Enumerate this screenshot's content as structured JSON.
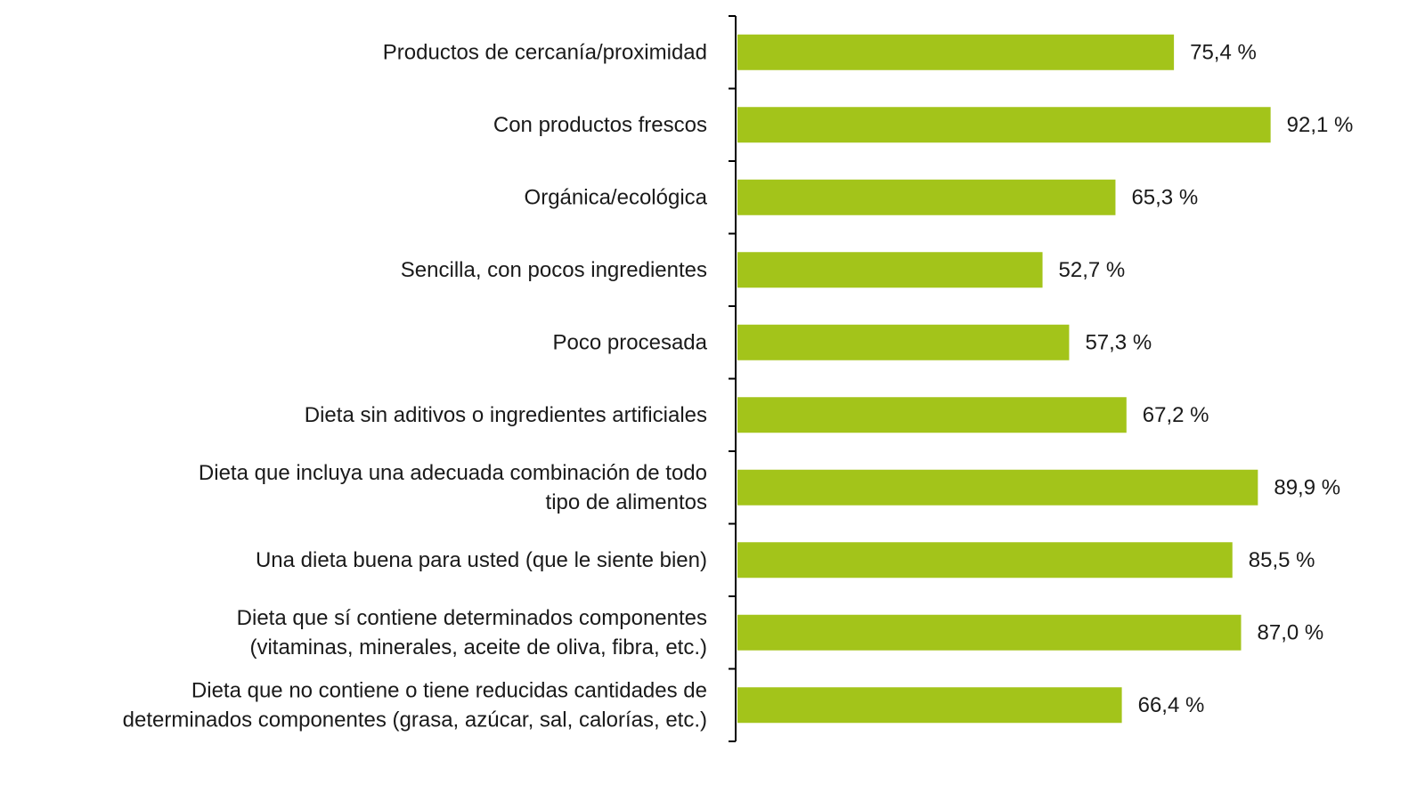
{
  "chart_data": {
    "type": "bar",
    "orientation": "horizontal",
    "title": "",
    "xlabel": "",
    "ylabel": "",
    "xlim": [
      0,
      100
    ],
    "grid": false,
    "legend": "none",
    "bar_color": "#a3c41a",
    "text_color": "#1a1a1a",
    "axis_color": "#000000",
    "categories": [
      [
        "Productos de cercanía/proximidad"
      ],
      [
        "Con productos frescos"
      ],
      [
        "Orgánica/ecológica"
      ],
      [
        "Sencilla, con pocos ingredientes"
      ],
      [
        "Poco procesada"
      ],
      [
        "Dieta sin aditivos o ingredientes artificiales"
      ],
      [
        "Dieta que incluya una adecuada combinación de todo",
        "tipo de alimentos"
      ],
      [
        "Una dieta buena para usted (que le siente bien)"
      ],
      [
        "Dieta que sí contiene determinados componentes",
        "(vitaminas, minerales, aceite de oliva, fibra, etc.)"
      ],
      [
        "Dieta que no contiene o tiene reducidas cantidades de",
        "determinados componentes (grasa, azúcar, sal, calorías, etc.)"
      ]
    ],
    "values": [
      75.4,
      92.1,
      65.3,
      52.7,
      57.3,
      67.2,
      89.9,
      85.5,
      87.0,
      66.4
    ],
    "value_labels": [
      "75,4 %",
      "92,1 %",
      "65,3 %",
      "52,7 %",
      "57,3 %",
      "67,2 %",
      "89,9 %",
      "85,5 %",
      "87,0 %",
      "66,4 %"
    ]
  }
}
